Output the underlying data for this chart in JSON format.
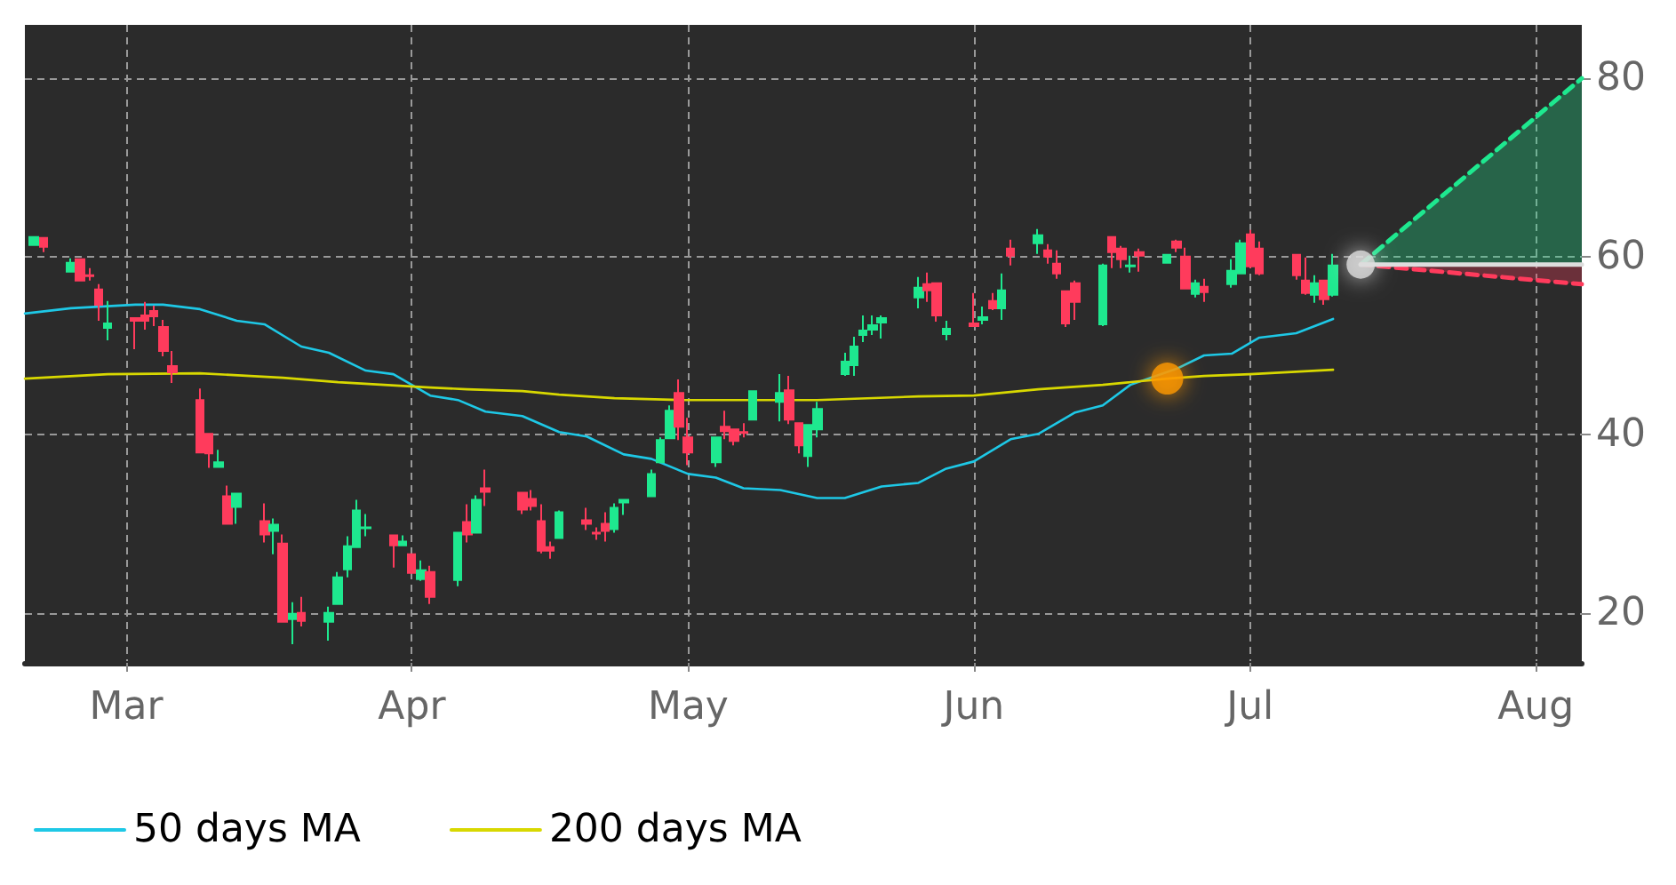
{
  "chart_data": {
    "type": "candlestick",
    "x": [
      "--02-19",
      "--02-20",
      "--02-23",
      "--02-24",
      "--02-25",
      "--02-26",
      "--02-27",
      "--03-02",
      "--03-03",
      "--03-04",
      "--03-05",
      "--03-06",
      "--03-09",
      "--03-10",
      "--03-11",
      "--03-12",
      "--03-13",
      "--03-16",
      "--03-17",
      "--03-18",
      "--03-19",
      "--03-20",
      "--03-23",
      "--03-24",
      "--03-25",
      "--03-26",
      "--03-27",
      "--03-30",
      "--03-31",
      "--04-01",
      "--04-02",
      "--04-03",
      "--04-06",
      "--04-07",
      "--04-08",
      "--04-09",
      "--04-13",
      "--04-14",
      "--04-15",
      "--04-16",
      "--04-17",
      "--04-20",
      "--04-21",
      "--04-22",
      "--04-23",
      "--04-24",
      "--04-27",
      "--04-28",
      "--04-29",
      "--04-30",
      "--05-01",
      "--05-04",
      "--05-05",
      "--05-06",
      "--05-07",
      "--05-08",
      "--05-11",
      "--05-12",
      "--05-13",
      "--05-14",
      "--05-15",
      "--05-18",
      "--05-19",
      "--05-20",
      "--05-21",
      "--05-22",
      "--05-26",
      "--05-27",
      "--05-28",
      "--05-29",
      "--06-01",
      "--06-02",
      "--06-03",
      "--06-04",
      "--06-05",
      "--06-08",
      "--06-09",
      "--06-10",
      "--06-11",
      "--06-12",
      "--06-15",
      "--06-16",
      "--06-17",
      "--06-18",
      "--06-19",
      "--06-22",
      "--06-23",
      "--06-24",
      "--06-25",
      "--06-26",
      "--06-29",
      "--06-30",
      "--07-01",
      "--07-02",
      "--07-06",
      "--07-07",
      "--07-08",
      "--07-09",
      "--07-10"
    ],
    "ohlc": [
      [
        61.3,
        62.3,
        61.2,
        62.2
      ],
      [
        62.1,
        62.1,
        60.5,
        61.1
      ],
      [
        58.3,
        59.8,
        58.3,
        59.3
      ],
      [
        59.7,
        59.8,
        57.2,
        57.3
      ],
      [
        57.9,
        58.7,
        57.3,
        57.8
      ],
      [
        56.3,
        56.9,
        52.8,
        54.6
      ],
      [
        52.0,
        55.0,
        50.6,
        52.5
      ],
      [
        53.1,
        53.1,
        49.6,
        52.8
      ],
      [
        53.4,
        54.9,
        51.8,
        52.8
      ],
      [
        53.9,
        54.5,
        52.2,
        53.3
      ],
      [
        52.1,
        52.9,
        48.8,
        49.4
      ],
      [
        47.7,
        49.4,
        45.8,
        47.0
      ],
      [
        43.9,
        45.2,
        38.0,
        38.0
      ],
      [
        40.1,
        40.1,
        36.3,
        37.9
      ],
      [
        36.4,
        38.3,
        36.3,
        36.9
      ],
      [
        33.1,
        34.3,
        30.0,
        30.0
      ],
      [
        31.9,
        33.4,
        30.0,
        33.4
      ],
      [
        30.3,
        32.3,
        27.9,
        28.8
      ],
      [
        29.2,
        30.6,
        26.6,
        29.9
      ],
      [
        27.8,
        28.8,
        19.0,
        19.0
      ],
      [
        19.3,
        21.2,
        16.5,
        19.9
      ],
      [
        20.0,
        21.8,
        18.5,
        19.1
      ],
      [
        19.0,
        20.7,
        16.9,
        20.0
      ],
      [
        21.0,
        24.6,
        20.9,
        24.0
      ],
      [
        24.9,
        28.6,
        24.0,
        27.5
      ],
      [
        27.4,
        32.7,
        27.4,
        31.5
      ],
      [
        29.5,
        31.1,
        28.6,
        29.6
      ],
      [
        28.7,
        28.7,
        25.1,
        27.6
      ],
      [
        27.6,
        28.7,
        27.6,
        28.0
      ],
      [
        26.6,
        26.6,
        24.5,
        24.5
      ],
      [
        23.8,
        25.9,
        23.6,
        24.8
      ],
      [
        24.6,
        25.3,
        21.0,
        21.8
      ],
      [
        23.7,
        29.0,
        23.0,
        29.0
      ],
      [
        30.2,
        32.2,
        27.9,
        28.8
      ],
      [
        29.0,
        33.2,
        29.0,
        32.7
      ],
      [
        34.0,
        36.1,
        32.0,
        33.6
      ],
      [
        33.5,
        33.5,
        31.1,
        31.6
      ],
      [
        32.8,
        33.8,
        31.5,
        32.0
      ],
      [
        30.3,
        32.2,
        26.7,
        27.0
      ],
      [
        27.4,
        28.0,
        26.1,
        27.0
      ],
      [
        28.4,
        31.5,
        28.3,
        31.3
      ],
      [
        30.4,
        31.8,
        29.3,
        30.0
      ],
      [
        29.0,
        29.6,
        28.2,
        28.9
      ],
      [
        30.0,
        31.3,
        28.0,
        29.2
      ],
      [
        29.4,
        32.3,
        29.0,
        31.8
      ],
      [
        32.4,
        32.7,
        31.0,
        32.7
      ],
      [
        33.1,
        36.1,
        33.1,
        35.6
      ],
      [
        36.9,
        39.7,
        36.9,
        39.4
      ],
      [
        39.6,
        43.3,
        39.6,
        42.7
      ],
      [
        44.7,
        46.2,
        39.4,
        40.9
      ],
      [
        39.7,
        41.9,
        36.6,
        38.0
      ],
      [
        36.9,
        39.7,
        36.4,
        39.7
      ],
      [
        40.9,
        42.7,
        39.5,
        40.4
      ],
      [
        40.6,
        40.6,
        38.8,
        39.3
      ],
      [
        40.3,
        41.3,
        39.7,
        40.2
      ],
      [
        41.7,
        44.9,
        41.6,
        44.9
      ],
      [
        43.7,
        46.8,
        41.5,
        44.7
      ],
      [
        45.0,
        46.6,
        41.2,
        41.7
      ],
      [
        41.3,
        41.3,
        37.9,
        38.8
      ],
      [
        37.6,
        41.1,
        36.4,
        41.1
      ],
      [
        40.6,
        43.7,
        39.7,
        42.9
      ],
      [
        46.8,
        49.2,
        46.6,
        48.2
      ],
      [
        47.8,
        51.0,
        46.6,
        49.9
      ],
      [
        51.2,
        53.4,
        50.4,
        51.7
      ],
      [
        51.8,
        53.4,
        51.2,
        52.3
      ],
      [
        52.6,
        53.4,
        50.8,
        53.1
      ],
      [
        55.4,
        57.7,
        54.2,
        56.5
      ],
      [
        56.9,
        58.2,
        54.9,
        56.2
      ],
      [
        57.0,
        57.0,
        52.7,
        53.4
      ],
      [
        51.3,
        52.8,
        50.6,
        51.9
      ],
      [
        52.5,
        55.9,
        52.1,
        52.2
      ],
      [
        52.9,
        54.4,
        52.4,
        53.2
      ],
      [
        55.0,
        55.9,
        54.0,
        54.2
      ],
      [
        54.2,
        58.1,
        52.9,
        56.2
      ],
      [
        60.9,
        61.9,
        59.0,
        60.1
      ],
      [
        61.5,
        63.1,
        60.3,
        62.4
      ],
      [
        60.7,
        61.4,
        59.2,
        60.0
      ],
      [
        59.2,
        60.7,
        57.5,
        58.1
      ],
      [
        56.1,
        56.1,
        52.1,
        52.5
      ],
      [
        57.0,
        57.3,
        52.9,
        54.9
      ],
      [
        52.4,
        59.2,
        52.2,
        59.0
      ],
      [
        62.2,
        62.2,
        58.7,
        60.5
      ],
      [
        60.9,
        61.2,
        58.7,
        59.7
      ],
      [
        58.9,
        60.1,
        58.2,
        59.0
      ],
      [
        60.5,
        60.9,
        58.3,
        60.1
      ],
      [
        59.3,
        60.3,
        59.2,
        60.2
      ],
      [
        61.7,
        61.9,
        60.5,
        61.0
      ],
      [
        60.0,
        61.0,
        56.4,
        56.4
      ],
      [
        55.8,
        57.4,
        55.4,
        57.0
      ],
      [
        56.6,
        57.5,
        54.9,
        56.0
      ],
      [
        56.9,
        59.7,
        56.5,
        58.4
      ],
      [
        58.1,
        61.9,
        58.1,
        61.5
      ],
      [
        62.5,
        63.0,
        58.7,
        58.9
      ],
      [
        60.9,
        61.7,
        57.9,
        58.1
      ],
      [
        60.2,
        60.2,
        57.4,
        57.9
      ],
      [
        57.3,
        59.9,
        55.7,
        55.9
      ],
      [
        55.7,
        57.9,
        54.8,
        57.0
      ],
      [
        57.3,
        57.3,
        54.6,
        55.2
      ],
      [
        55.7,
        60.3,
        55.5,
        59.0
      ]
    ],
    "colors": [
      "#1ee88f",
      "#ff3b5c",
      "#1ee88f",
      "#ff3b5c",
      "#ff3b5c",
      "#ff3b5c",
      "#1ee88f",
      "#ff3b5c",
      "#ff3b5c",
      "#ff3b5c",
      "#ff3b5c",
      "#ff3b5c",
      "#ff3b5c",
      "#ff3b5c",
      "#1ee88f",
      "#ff3b5c",
      "#1ee88f",
      "#ff3b5c",
      "#1ee88f",
      "#ff3b5c",
      "#1ee88f",
      "#ff3b5c",
      "#1ee88f",
      "#1ee88f",
      "#1ee88f",
      "#1ee88f",
      "#1ee88f",
      "#ff3b5c",
      "#1ee88f",
      "#ff3b5c",
      "#1ee88f",
      "#ff3b5c",
      "#1ee88f",
      "#ff3b5c",
      "#1ee88f",
      "#ff3b5c",
      "#ff3b5c",
      "#ff3b5c",
      "#ff3b5c",
      "#ff3b5c",
      "#1ee88f",
      "#ff3b5c",
      "#ff3b5c",
      "#ff3b5c",
      "#1ee88f",
      "#1ee88f",
      "#1ee88f",
      "#1ee88f",
      "#1ee88f",
      "#ff3b5c",
      "#ff3b5c",
      "#1ee88f",
      "#ff3b5c",
      "#ff3b5c",
      "#ff3b5c",
      "#1ee88f",
      "#1ee88f",
      "#ff3b5c",
      "#ff3b5c",
      "#1ee88f",
      "#1ee88f",
      "#1ee88f",
      "#1ee88f",
      "#1ee88f",
      "#1ee88f",
      "#1ee88f",
      "#1ee88f",
      "#ff3b5c",
      "#ff3b5c",
      "#1ee88f",
      "#ff3b5c",
      "#1ee88f",
      "#ff3b5c",
      "#1ee88f",
      "#ff3b5c",
      "#1ee88f",
      "#ff3b5c",
      "#ff3b5c",
      "#ff3b5c",
      "#ff3b5c",
      "#1ee88f",
      "#ff3b5c",
      "#ff3b5c",
      "#1ee88f",
      "#ff3b5c",
      "#1ee88f",
      "#ff3b5c",
      "#ff3b5c",
      "#1ee88f",
      "#ff3b5c",
      "#1ee88f",
      "#1ee88f",
      "#ff3b5c",
      "#ff3b5c",
      "#ff3b5c",
      "#ff3b5c",
      "#1ee88f",
      "#ff3b5c",
      "#1ee88f"
    ],
    "series": [
      {
        "name": "50 days MA",
        "type": "line",
        "color": "#1ec8e6",
        "marker": "none",
        "x": [
          "--02-18",
          "--02-23",
          "--03-02",
          "--03-05",
          "--03-09",
          "--03-13",
          "--03-16",
          "--03-20",
          "--03-23",
          "--03-27",
          "--03-30",
          "--04-01",
          "--04-03",
          "--04-06",
          "--04-09",
          "--04-13",
          "--04-17",
          "--04-20",
          "--04-24",
          "--04-27",
          "--05-01",
          "--05-04",
          "--05-07",
          "--05-11",
          "--05-15",
          "--05-18",
          "--05-22",
          "--05-26",
          "--05-29",
          "--06-01",
          "--06-05",
          "--06-08",
          "--06-12",
          "--06-15",
          "--06-18",
          "--06-23",
          "--06-26",
          "--06-29",
          "--07-02",
          "--07-06",
          "--07-08",
          "--07-10"
        ],
        "values": [
          53.6,
          54.2,
          54.6,
          54.6,
          54.1,
          52.8,
          52.4,
          49.9,
          49.2,
          47.2,
          46.8,
          45.6,
          44.4,
          43.9,
          42.6,
          42.1,
          40.3,
          39.8,
          37.8,
          37.3,
          35.6,
          35.2,
          34.0,
          33.8,
          32.9,
          32.9,
          34.2,
          34.6,
          36.2,
          37.0,
          39.5,
          40.1,
          42.5,
          43.3,
          45.6,
          47.4,
          48.9,
          49.1,
          50.9,
          51.4,
          52.2,
          53.0
        ]
      },
      {
        "name": "200 days MA",
        "type": "line",
        "color": "#d8d800",
        "marker": "none",
        "x": [
          "--02-18",
          "--02-27",
          "--03-09",
          "--03-18",
          "--03-24",
          "--04-03",
          "--04-07",
          "--04-13",
          "--04-17",
          "--04-23",
          "--04-30",
          "--05-15",
          "--05-26",
          "--06-01",
          "--06-08",
          "--06-15",
          "--06-22",
          "--06-26",
          "--07-01",
          "--07-10"
        ],
        "values": [
          46.3,
          46.8,
          46.9,
          46.4,
          45.9,
          45.3,
          45.1,
          44.9,
          44.5,
          44.1,
          43.9,
          43.9,
          44.3,
          44.4,
          45.1,
          45.6,
          46.3,
          46.6,
          46.8,
          47.3
        ]
      },
      {
        "type": "line",
        "color": "#1ee88f",
        "line_style": "dashed",
        "marker": "none",
        "x": [
          "--07-13",
          "--08-06"
        ],
        "values": [
          59.1,
          80.0
        ],
        "lower": [
          59.1,
          59.1
        ],
        "upper": [
          59.1,
          80.0
        ]
      },
      {
        "type": "line",
        "color": "#ff3b5c",
        "line_style": "dashed",
        "marker": "none",
        "x": [
          "--07-13",
          "--08-06"
        ],
        "values": [
          59.1,
          56.9
        ],
        "lower": [
          59.1,
          56.9
        ],
        "upper": [
          59.1,
          59.1
        ]
      },
      {
        "type": "line",
        "color": "#dddddd",
        "marker": "none",
        "x": [
          "--07-13",
          "--08-06"
        ],
        "values": [
          59.1,
          59.1
        ]
      },
      {
        "type": "scatter",
        "color": "#dddddd",
        "marker": "circle",
        "x": [
          "--07-13"
        ],
        "values": [
          59.1
        ]
      },
      {
        "type": "scatter",
        "color": "#ff9900",
        "marker": "circle",
        "x": [
          "--06-22"
        ],
        "values": [
          46.3
        ]
      }
    ],
    "xlim": [
      "--02-18",
      "--08-06"
    ],
    "xticks": [
      {
        "value": "--03-01",
        "label": "Mar"
      },
      {
        "value": "--04-01",
        "label": "Apr"
      },
      {
        "value": "--05-01",
        "label": "May"
      },
      {
        "value": "--06-01",
        "label": "Jun"
      },
      {
        "value": "--07-01",
        "label": "Jul"
      },
      {
        "value": "--08-01",
        "label": "Aug"
      }
    ],
    "ylim": [
      14.4,
      86
    ],
    "yticks": [
      20,
      40,
      60,
      80
    ],
    "grid": true,
    "legend": "bottom left"
  }
}
